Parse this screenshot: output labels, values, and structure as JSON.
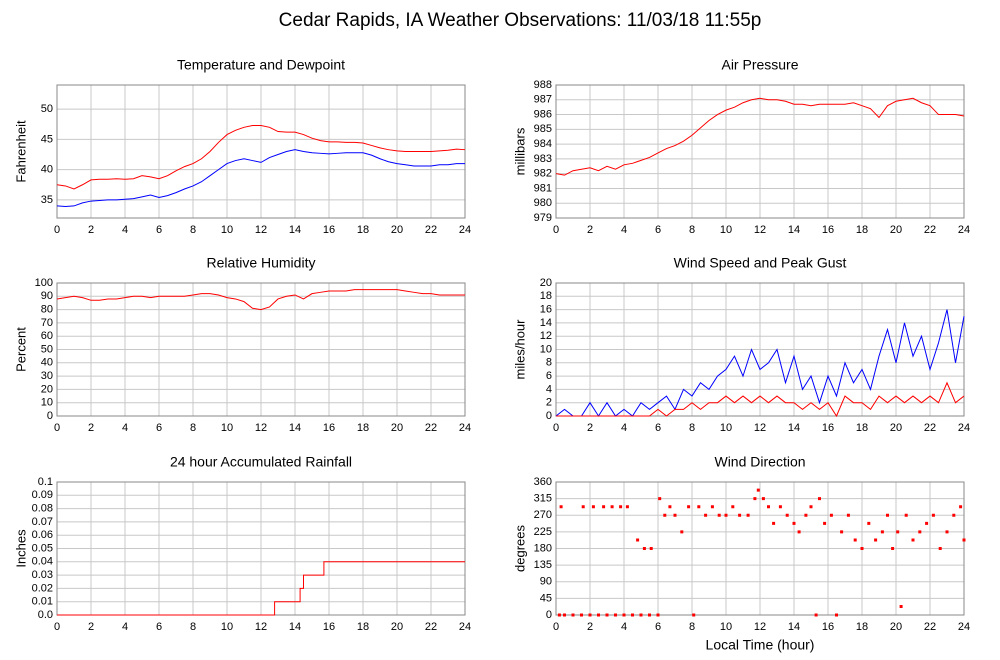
{
  "title": "Cedar Rapids, IA Weather Observations: 11/03/18 11:55p",
  "chart_data": [
    {
      "type": "line",
      "title": "Temperature and Dewpoint",
      "ylabel": "Fahrenheit",
      "grid": true,
      "xlim": [
        0,
        24
      ],
      "xticks": [
        0,
        2,
        4,
        6,
        8,
        10,
        12,
        14,
        16,
        18,
        20,
        22,
        24
      ],
      "ylim": [
        32,
        54
      ],
      "yticks": [
        35,
        40,
        45,
        50
      ],
      "x": [
        0,
        0.5,
        1,
        1.5,
        2,
        2.5,
        3,
        3.5,
        4,
        4.5,
        5,
        5.5,
        6,
        6.5,
        7,
        7.5,
        8,
        8.5,
        9,
        9.5,
        10,
        10.5,
        11,
        11.5,
        12,
        12.5,
        13,
        13.5,
        14,
        14.5,
        15,
        15.5,
        16,
        16.5,
        17,
        17.5,
        18,
        18.5,
        19,
        19.5,
        20,
        20.5,
        21,
        21.5,
        22,
        22.5,
        23,
        23.5,
        24
      ],
      "series": [
        {
          "color": "#ff0000",
          "values": [
            37.5,
            37.3,
            36.8,
            37.5,
            38.3,
            38.4,
            38.4,
            38.5,
            38.4,
            38.5,
            39,
            38.8,
            38.5,
            39,
            39.8,
            40.5,
            41,
            41.8,
            43,
            44.5,
            45.8,
            46.5,
            47,
            47.3,
            47.3,
            47,
            46.3,
            46.2,
            46.2,
            45.8,
            45.2,
            44.8,
            44.6,
            44.6,
            44.5,
            44.5,
            44.4,
            44,
            43.6,
            43.3,
            43.1,
            43,
            43,
            43,
            43,
            43.1,
            43.2,
            43.4,
            43.3
          ]
        },
        {
          "color": "#0000ff",
          "values": [
            34,
            33.9,
            34,
            34.5,
            34.8,
            34.9,
            35,
            35,
            35.1,
            35.2,
            35.5,
            35.8,
            35.4,
            35.7,
            36.2,
            36.8,
            37.3,
            38,
            39,
            40,
            41,
            41.5,
            41.8,
            41.5,
            41.2,
            42,
            42.5,
            43,
            43.3,
            43,
            42.8,
            42.7,
            42.6,
            42.7,
            42.8,
            42.8,
            42.8,
            42.4,
            41.8,
            41.3,
            41,
            40.8,
            40.6,
            40.6,
            40.6,
            40.8,
            40.8,
            41,
            41
          ]
        }
      ]
    },
    {
      "type": "line",
      "title": "Air Pressure",
      "ylabel": "millibars",
      "grid": true,
      "xlim": [
        0,
        24
      ],
      "xticks": [
        0,
        2,
        4,
        6,
        8,
        10,
        12,
        14,
        16,
        18,
        20,
        22,
        24
      ],
      "ylim": [
        979,
        988
      ],
      "yticks": [
        979,
        980,
        981,
        982,
        983,
        984,
        985,
        986,
        987,
        988
      ],
      "x": [
        0,
        0.5,
        1,
        1.5,
        2,
        2.5,
        3,
        3.5,
        4,
        4.5,
        5,
        5.5,
        6,
        6.5,
        7,
        7.5,
        8,
        8.5,
        9,
        9.5,
        10,
        10.5,
        11,
        11.5,
        12,
        12.5,
        13,
        13.5,
        14,
        14.5,
        15,
        15.5,
        16,
        16.5,
        17,
        17.5,
        18,
        18.5,
        19,
        19.5,
        20,
        20.5,
        21,
        21.5,
        22,
        22.5,
        23,
        23.5,
        24
      ],
      "series": [
        {
          "color": "#ff0000",
          "values": [
            982,
            981.9,
            982.2,
            982.3,
            982.4,
            982.2,
            982.5,
            982.3,
            982.6,
            982.7,
            982.9,
            983.1,
            983.4,
            983.7,
            983.9,
            984.2,
            984.6,
            985.1,
            985.6,
            986,
            986.3,
            986.5,
            986.8,
            987,
            987.1,
            987,
            987,
            986.9,
            986.7,
            986.7,
            986.6,
            986.7,
            986.7,
            986.7,
            986.7,
            986.8,
            986.6,
            986.4,
            985.8,
            986.6,
            986.9,
            987,
            987.1,
            986.8,
            986.6,
            986,
            986,
            986,
            985.9
          ]
        }
      ]
    },
    {
      "type": "line",
      "title": "Relative Humidity",
      "ylabel": "Percent",
      "grid": true,
      "xlim": [
        0,
        24
      ],
      "xticks": [
        0,
        2,
        4,
        6,
        8,
        10,
        12,
        14,
        16,
        18,
        20,
        22,
        24
      ],
      "ylim": [
        0,
        100
      ],
      "yticks": [
        0,
        10,
        20,
        30,
        40,
        50,
        60,
        70,
        80,
        90,
        100
      ],
      "x": [
        0,
        0.5,
        1,
        1.5,
        2,
        2.5,
        3,
        3.5,
        4,
        4.5,
        5,
        5.5,
        6,
        6.5,
        7,
        7.5,
        8,
        8.5,
        9,
        9.5,
        10,
        10.5,
        11,
        11.5,
        12,
        12.5,
        13,
        13.5,
        14,
        14.5,
        15,
        15.5,
        16,
        16.5,
        17,
        17.5,
        18,
        18.5,
        19,
        19.5,
        20,
        20.5,
        21,
        21.5,
        22,
        22.5,
        23,
        23.5,
        24
      ],
      "series": [
        {
          "color": "#ff0000",
          "values": [
            88,
            89,
            90,
            89,
            87,
            87,
            88,
            88,
            89,
            90,
            90,
            89,
            90,
            90,
            90,
            90,
            91,
            92,
            92,
            91,
            89,
            88,
            86,
            81,
            80,
            82,
            88,
            90,
            91,
            88,
            92,
            93,
            94,
            94,
            94,
            95,
            95,
            95,
            95,
            95,
            95,
            94,
            93,
            92,
            92,
            91,
            91,
            91,
            91
          ]
        }
      ]
    },
    {
      "type": "line",
      "title": "Wind Speed and Peak Gust",
      "ylabel": "miles/hour",
      "grid": true,
      "xlim": [
        0,
        24
      ],
      "xticks": [
        0,
        2,
        4,
        6,
        8,
        10,
        12,
        14,
        16,
        18,
        20,
        22,
        24
      ],
      "ylim": [
        0,
        20
      ],
      "yticks": [
        0,
        2,
        4,
        6,
        8,
        10,
        12,
        14,
        16,
        18,
        20
      ],
      "x": [
        0,
        0.5,
        1,
        1.5,
        2,
        2.5,
        3,
        3.5,
        4,
        4.5,
        5,
        5.5,
        6,
        6.5,
        7,
        7.5,
        8,
        8.5,
        9,
        9.5,
        10,
        10.5,
        11,
        11.5,
        12,
        12.5,
        13,
        13.5,
        14,
        14.5,
        15,
        15.5,
        16,
        16.5,
        17,
        17.5,
        18,
        18.5,
        19,
        19.5,
        20,
        20.5,
        21,
        21.5,
        22,
        22.5,
        23,
        23.5,
        24
      ],
      "series": [
        {
          "color": "#0000ff",
          "values": [
            0,
            1,
            0,
            0,
            2,
            0,
            2,
            0,
            1,
            0,
            2,
            1,
            2,
            3,
            1,
            4,
            3,
            5,
            4,
            6,
            7,
            9,
            6,
            10,
            7,
            8,
            10,
            5,
            9,
            4,
            6,
            2,
            6,
            3,
            8,
            5,
            7,
            4,
            9,
            13,
            8,
            14,
            9,
            12,
            7,
            11,
            16,
            8,
            15
          ]
        },
        {
          "color": "#ff0000",
          "values": [
            0,
            0,
            0,
            0,
            0,
            0,
            0,
            0,
            0,
            0,
            0,
            0,
            1,
            0,
            1,
            1,
            2,
            1,
            2,
            2,
            3,
            2,
            3,
            2,
            3,
            2,
            3,
            2,
            2,
            1,
            2,
            1,
            2,
            0,
            3,
            2,
            2,
            1,
            3,
            2,
            3,
            2,
            3,
            2,
            3,
            2,
            5,
            2,
            3
          ]
        }
      ]
    },
    {
      "type": "line",
      "title": "24 hour Accumulated Rainfall",
      "ylabel": "Inches",
      "grid": true,
      "xlim": [
        0,
        24
      ],
      "xticks": [
        0,
        2,
        4,
        6,
        8,
        10,
        12,
        14,
        16,
        18,
        20,
        22,
        24
      ],
      "ylim": [
        0,
        0.1
      ],
      "yticks": [
        {
          "value": 0,
          "label": "0.0"
        },
        0.01,
        0.02,
        0.03,
        0.04,
        0.05,
        0.06,
        0.07,
        0.08,
        0.09,
        0.1
      ],
      "x": [
        0,
        12.8,
        12.8,
        14.3,
        14.3,
        14.5,
        14.5,
        15.7,
        15.7,
        24
      ],
      "series": [
        {
          "color": "#ff0000",
          "values": [
            0,
            0,
            0.01,
            0.01,
            0.02,
            0.02,
            0.03,
            0.03,
            0.04,
            0.04
          ]
        }
      ]
    },
    {
      "type": "scatter",
      "title": "Wind Direction",
      "ylabel": "degrees",
      "xlabel": "Local Time (hour)",
      "grid": true,
      "xlim": [
        0,
        24
      ],
      "xticks": [
        0,
        2,
        4,
        6,
        8,
        10,
        12,
        14,
        16,
        18,
        20,
        22,
        24
      ],
      "ylim": [
        0,
        360
      ],
      "yticks": [
        0,
        45,
        90,
        135,
        180,
        225,
        270,
        315,
        360
      ],
      "x": [
        0.2,
        0.5,
        1,
        1.5,
        2,
        2.5,
        3,
        3.5,
        4,
        4.5,
        5,
        5.5,
        6,
        0.3,
        1.6,
        2.2,
        2.8,
        3.3,
        3.8,
        4.2,
        4.8,
        5.2,
        5.6,
        6.1,
        6.4,
        6.7,
        7,
        7.4,
        7.8,
        8.1,
        8.4,
        8.8,
        9.2,
        9.6,
        10,
        10.4,
        10.8,
        11.3,
        11.7,
        11.9,
        12.2,
        12.5,
        12.8,
        13.2,
        13.6,
        14,
        14.3,
        14.7,
        15,
        15.3,
        15.5,
        15.8,
        16.2,
        16.5,
        16.8,
        17.2,
        17.6,
        18,
        18.4,
        18.8,
        19.2,
        19.5,
        19.8,
        20.1,
        20.3,
        20.6,
        21,
        21.4,
        21.8,
        22.2,
        22.6,
        23,
        23.4,
        23.8,
        24
      ],
      "series": [
        {
          "color": "#ff0000",
          "values": [
            0,
            0,
            0,
            0,
            0,
            0,
            0,
            0,
            0,
            0,
            0,
            0,
            0,
            293,
            293,
            293,
            293,
            293,
            293,
            293,
            203,
            180,
            180,
            315,
            270,
            293,
            270,
            225,
            293,
            0,
            293,
            270,
            293,
            270,
            270,
            293,
            270,
            270,
            315,
            338,
            315,
            293,
            248,
            293,
            270,
            248,
            225,
            270,
            293,
            0,
            315,
            248,
            270,
            0,
            225,
            270,
            203,
            180,
            248,
            203,
            225,
            270,
            180,
            225,
            23,
            270,
            203,
            225,
            248,
            270,
            180,
            225,
            270,
            293,
            203
          ]
        }
      ]
    }
  ]
}
